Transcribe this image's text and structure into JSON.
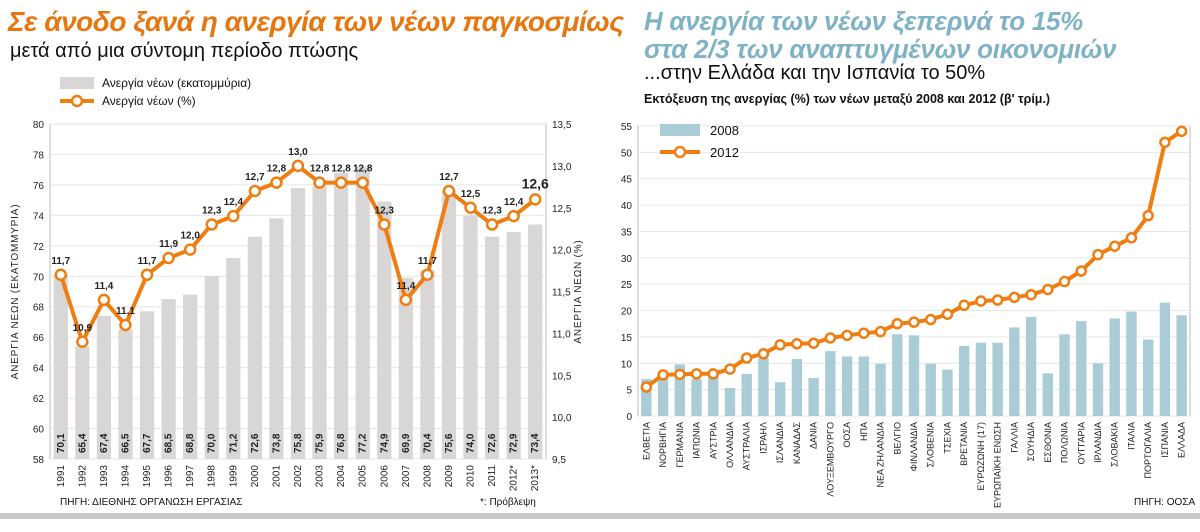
{
  "left": {
    "title": "Σε άνοδο ξανά η ανεργία των νέων παγκοσμίως",
    "subtitle": "μετά από μια σύντομη περίοδο πτώσης",
    "source": "ΠΗΓΗ: ΔΙΕΘΝΗΣ ΟΡΓΑΝΩΣΗ ΕΡΓΑΣΙΑΣ",
    "footnote": "*: Πρόβλεψη"
  },
  "right": {
    "title_line1": "Η ανεργία των νέων ξεπερνά το 15%",
    "title_line2": "στα 2/3 των αναπτυγμένων οικονομιών",
    "subtitle": "...στην Ελλάδα και την Ισπανία το 50%",
    "subtitle2": "Εκτόξευση της ανεργίας (%) των νέων μεταξύ 2008 και 2012 (β' τρίμ.)",
    "source": "ΠΗΓΗ: ΟΟΣΑ"
  },
  "colors": {
    "orange": "#ef7d10",
    "grey_bar": "#d9d6d6",
    "blue_bar": "#a9ccd6",
    "title_blue": "#7fb2c4"
  },
  "chart_data": [
    {
      "type": "bar",
      "combo": "bar+line",
      "categories": [
        "1991",
        "1992",
        "1993",
        "1994",
        "1995",
        "1996",
        "1997",
        "1998",
        "1999",
        "2000",
        "2001",
        "2002",
        "2003",
        "2004",
        "2005",
        "2006",
        "2007",
        "2008",
        "2009",
        "2010",
        "2011",
        "2012*",
        "2013*"
      ],
      "series": [
        {
          "name": "Ανεργία νέων (εκατομμύρια)",
          "type": "bar",
          "axis": "left",
          "values": [
            70.1,
            65.4,
            67.4,
            66.5,
            67.7,
            68.5,
            68.8,
            70.0,
            71.2,
            72.6,
            73.8,
            75.8,
            75.9,
            76.8,
            77.2,
            74.9,
            69.9,
            70.4,
            75.6,
            74.0,
            72.6,
            72.9,
            73.4
          ],
          "labels": [
            "70,1",
            "65,4",
            "67,4",
            "66,5",
            "67,7",
            "68,5",
            "68,8",
            "70,0",
            "71,2",
            "72,6",
            "73,8",
            "75,8",
            "75,9",
            "76,8",
            "77,2",
            "74,9",
            "69,9",
            "70,4",
            "75,6",
            "74,0",
            "72,6",
            "72,9",
            "73,4"
          ]
        },
        {
          "name": "Ανεργία νέων (%)",
          "type": "line",
          "axis": "right",
          "values": [
            11.7,
            10.9,
            11.4,
            11.1,
            11.7,
            11.9,
            12.0,
            12.3,
            12.4,
            12.7,
            12.8,
            13.0,
            12.8,
            12.8,
            12.8,
            12.3,
            11.4,
            11.7,
            12.7,
            12.5,
            12.3,
            12.4,
            12.6
          ],
          "labels": [
            "11,7",
            "10,9",
            "11,4",
            "11,1",
            "11,7",
            "11,9",
            "12,0",
            "12,3",
            "12,4",
            "12,7",
            "12,8",
            "13,0",
            "12,8",
            "12,8",
            "12,8",
            "12,3",
            "11,4",
            "11,7",
            "12,7",
            "12,5",
            "12,3",
            "12,4",
            "12,6"
          ]
        }
      ],
      "ylabel": "ΑΝΕΡΓΙΑ ΝΕΩΝ (ΕΚΑΤΟΜΜΥΡΙΑ)",
      "ylim": [
        58,
        80
      ],
      "yticks": [
        "58",
        "60",
        "62",
        "64",
        "66",
        "68",
        "70",
        "72",
        "74",
        "76",
        "78",
        "80"
      ],
      "y2label": "ΑΝΕΡΓΙΑ ΝΕΩΝ (%)",
      "y2lim": [
        9.5,
        13.5
      ],
      "y2ticks": [
        "9,5",
        "10,0",
        "10,5",
        "11,0",
        "11,5",
        "12,0",
        "12,5",
        "13,0",
        "13,5"
      ],
      "legend_position": "top-left",
      "grid": true
    },
    {
      "type": "bar",
      "combo": "bar+line",
      "categories": [
        "ΕΛΒΕΤΙΑ",
        "ΝΟΡΒΗΓΙΑ",
        "ΓΕΡΜΑΝΙΑ",
        "ΙΑΠΩΝΙΑ",
        "ΑΥΣΤΡΙΑ",
        "ΟΛΛΑΝΔΙΑ",
        "ΑΥΣΤΡΑΛΙΑ",
        "ΙΣΡΑΗΛ",
        "ΙΣΛΑΝΔΙΑ",
        "ΚΑΝΑΔΑΣ",
        "ΔΑΝΙΑ",
        "ΛΟΥΞΕΜΒΟΥΡΓΟ",
        "ΟΟΣΑ",
        "ΗΠΑ",
        "ΝΕΑ ΖΗΛΑΝΔΙΑ",
        "ΒΕΛΓΙΟ",
        "ΦΙΝΛΑΝΔΙΑ",
        "ΣΛΟΒΕΝΙΑ",
        "ΤΣΕΧΙΑ",
        "ΒΡΕΤΑΝΙΑ",
        "ΕΥΡΩΖΩΝΗ (17)",
        "ΕΥΡΩΠΑΪΚΗ ΕΝΩΣΗ",
        "ΓΑΛΛΙΑ",
        "ΣΟΥΗΔΙΑ",
        "ΕΣΘΟΝΙΑ",
        "ΠΟΛΩΝΙΑ",
        "ΟΥΓΓΑΡΙΑ",
        "ΙΡΛΑΝΔΙΑ",
        "ΣΛΟΒΑΚΙΑ",
        "ΙΤΑΛΙΑ",
        "ΠΟΡΤΟΓΑΛΙΑ",
        "ΙΣΠΑΝΙΑ",
        "ΕΛΛΑΔΑ"
      ],
      "series": [
        {
          "name": "2008",
          "type": "bar",
          "values": [
            7.0,
            7.3,
            9.8,
            7.0,
            8.1,
            5.3,
            8.0,
            11.0,
            6.4,
            10.8,
            7.2,
            12.3,
            11.3,
            11.3,
            9.9,
            15.5,
            15.3,
            9.9,
            8.8,
            13.3,
            13.9,
            13.9,
            16.8,
            18.8,
            8.1,
            15.5,
            18.0,
            10.0,
            18.5,
            19.8,
            14.5,
            21.5,
            19.1
          ]
        },
        {
          "name": "2012",
          "type": "line",
          "values": [
            5.5,
            7.8,
            7.9,
            8.0,
            8.0,
            8.9,
            11.0,
            11.8,
            13.5,
            13.7,
            13.8,
            14.8,
            15.3,
            15.7,
            16.0,
            17.5,
            17.8,
            18.3,
            19.3,
            21.0,
            21.8,
            22.0,
            22.5,
            23.0,
            24.0,
            25.5,
            27.5,
            30.6,
            32.2,
            33.8,
            38.0,
            51.9,
            54.0
          ]
        }
      ],
      "ylim": [
        0,
        55
      ],
      "yticks": [
        "0",
        "5",
        "10",
        "15",
        "20",
        "25",
        "30",
        "35",
        "40",
        "45",
        "50",
        "55"
      ],
      "legend_position": "top-left",
      "grid": true
    }
  ]
}
